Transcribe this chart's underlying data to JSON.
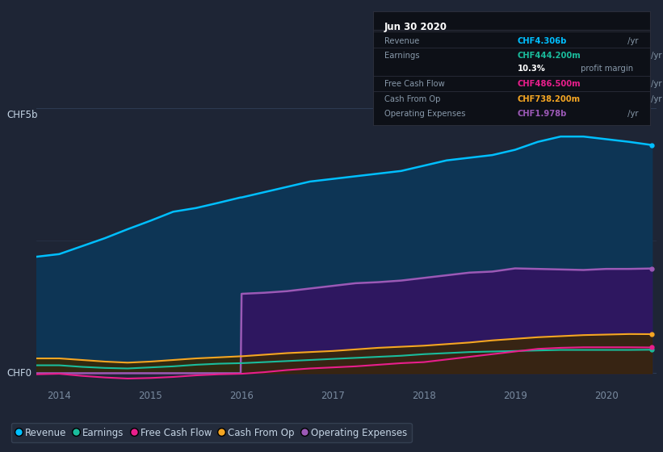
{
  "background_color": "#1e2535",
  "plot_bg_color": "#1e2535",
  "years": [
    2013.75,
    2014.0,
    2014.25,
    2014.5,
    2014.75,
    2015.0,
    2015.25,
    2015.5,
    2015.75,
    2015.99,
    2016.0,
    2016.25,
    2016.5,
    2016.75,
    2017.0,
    2017.25,
    2017.5,
    2017.75,
    2018.0,
    2018.25,
    2018.5,
    2018.75,
    2019.0,
    2019.25,
    2019.5,
    2019.75,
    2020.0,
    2020.25,
    2020.5
  ],
  "revenue": [
    2.2,
    2.25,
    2.4,
    2.55,
    2.72,
    2.88,
    3.05,
    3.12,
    3.22,
    3.32,
    3.32,
    3.42,
    3.52,
    3.62,
    3.67,
    3.72,
    3.77,
    3.82,
    3.92,
    4.02,
    4.07,
    4.12,
    4.22,
    4.37,
    4.47,
    4.47,
    4.42,
    4.37,
    4.31
  ],
  "op_expenses": [
    0.0,
    0.0,
    0.0,
    0.0,
    0.0,
    0.0,
    0.0,
    0.0,
    0.0,
    0.0,
    1.5,
    1.52,
    1.55,
    1.6,
    1.65,
    1.7,
    1.72,
    1.75,
    1.8,
    1.85,
    1.9,
    1.92,
    1.98,
    1.97,
    1.96,
    1.95,
    1.97,
    1.97,
    1.978
  ],
  "cash_from_op": [
    0.28,
    0.28,
    0.25,
    0.22,
    0.2,
    0.22,
    0.25,
    0.28,
    0.3,
    0.32,
    0.32,
    0.35,
    0.38,
    0.4,
    0.42,
    0.45,
    0.48,
    0.5,
    0.52,
    0.55,
    0.58,
    0.62,
    0.65,
    0.68,
    0.7,
    0.72,
    0.73,
    0.74,
    0.738
  ],
  "earnings": [
    0.15,
    0.15,
    0.12,
    0.1,
    0.09,
    0.11,
    0.13,
    0.16,
    0.18,
    0.19,
    0.19,
    0.21,
    0.23,
    0.25,
    0.27,
    0.29,
    0.31,
    0.33,
    0.36,
    0.38,
    0.4,
    0.41,
    0.42,
    0.43,
    0.44,
    0.44,
    0.44,
    0.44,
    0.444
  ],
  "free_cash_flow": [
    -0.02,
    -0.01,
    -0.05,
    -0.08,
    -0.1,
    -0.09,
    -0.07,
    -0.04,
    -0.02,
    -0.01,
    -0.01,
    0.02,
    0.06,
    0.09,
    0.11,
    0.13,
    0.16,
    0.19,
    0.21,
    0.26,
    0.31,
    0.36,
    0.41,
    0.46,
    0.48,
    0.49,
    0.49,
    0.49,
    0.4865
  ],
  "revenue_color": "#00bfff",
  "op_expenses_color": "#9b59b6",
  "cash_from_op_color": "#f5a623",
  "earnings_color": "#1abc9c",
  "free_cash_flow_color": "#e91e8c",
  "grid_color": "#2d3a52",
  "axis_label_color": "#7a8ba0",
  "text_color": "#c5d5e5",
  "ylim": [
    -0.25,
    5.0
  ],
  "xlim": [
    2013.75,
    2020.55
  ],
  "xticks": [
    2014,
    2015,
    2016,
    2017,
    2018,
    2019,
    2020
  ],
  "legend_items": [
    {
      "label": "Revenue",
      "color": "#00bfff"
    },
    {
      "label": "Earnings",
      "color": "#1abc9c"
    },
    {
      "label": "Free Cash Flow",
      "color": "#e91e8c"
    },
    {
      "label": "Cash From Op",
      "color": "#f5a623"
    },
    {
      "label": "Operating Expenses",
      "color": "#9b59b6"
    }
  ],
  "infobox": {
    "title": "Jun 30 2020",
    "rows": [
      {
        "label": "Revenue",
        "value": "CHF4.306b",
        "value_color": "#00bfff",
        "suffix": " /yr"
      },
      {
        "label": "Earnings",
        "value": "CHF444.200m",
        "value_color": "#1abc9c",
        "suffix": " /yr"
      },
      {
        "label": "",
        "value": "10.3%",
        "value_color": "#ffffff",
        "suffix": " profit margin"
      },
      {
        "label": "Free Cash Flow",
        "value": "CHF486.500m",
        "value_color": "#e91e8c",
        "suffix": " /yr"
      },
      {
        "label": "Cash From Op",
        "value": "CHF738.200m",
        "value_color": "#f5a623",
        "suffix": " /yr"
      },
      {
        "label": "Operating Expenses",
        "value": "CHF1.978b",
        "value_color": "#9b59b6",
        "suffix": " /yr"
      }
    ]
  }
}
